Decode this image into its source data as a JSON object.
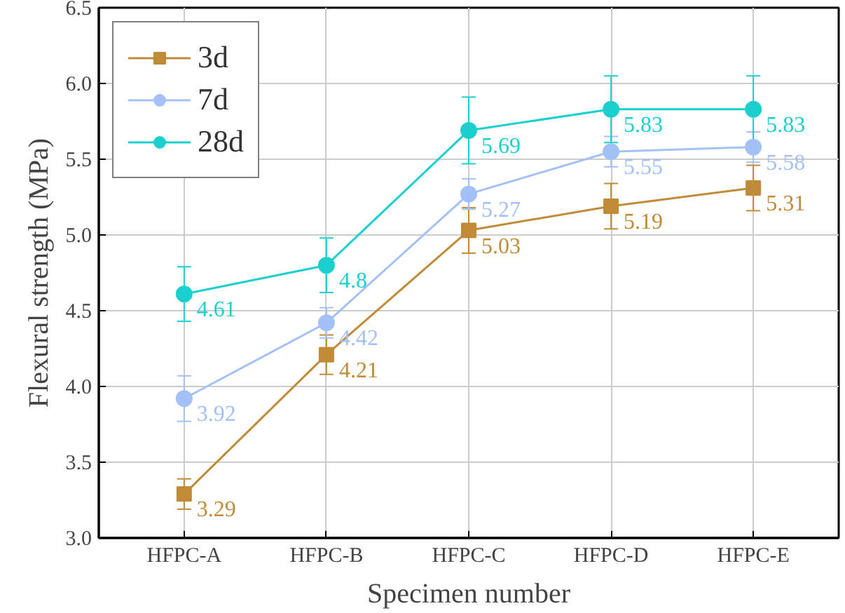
{
  "chart_data": {
    "type": "line",
    "xlabel": "Specimen number",
    "ylabel": "Flexural strength (MPa)",
    "categories": [
      "HFPC-A",
      "HFPC-B",
      "HFPC-C",
      "HFPC-D",
      "HFPC-E"
    ],
    "series": [
      {
        "name": "3d",
        "color": "#c08b38",
        "marker": "square",
        "values": [
          3.29,
          4.21,
          5.03,
          5.19,
          5.31
        ],
        "errors": [
          0.1,
          0.13,
          0.15,
          0.15,
          0.15
        ]
      },
      {
        "name": "7d",
        "color": "#a3c1f7",
        "marker": "circle",
        "values": [
          3.92,
          4.42,
          5.27,
          5.55,
          5.58
        ],
        "errors": [
          0.15,
          0.1,
          0.1,
          0.1,
          0.1
        ]
      },
      {
        "name": "28d",
        "color": "#1ccfcf",
        "marker": "circle",
        "values": [
          4.61,
          4.8,
          5.69,
          5.83,
          5.83
        ],
        "errors": [
          0.18,
          0.18,
          0.22,
          0.22,
          0.22
        ]
      }
    ],
    "ylim": [
      3.0,
      6.5
    ],
    "yticks": [
      {
        "value": 3,
        "label": "3.0"
      },
      3.5,
      {
        "value": 4,
        "label": "4.0"
      },
      4.5,
      {
        "value": 5,
        "label": "5.0"
      },
      5.5,
      {
        "value": 6,
        "label": "6.0"
      },
      6.5
    ],
    "grid": true,
    "legend": "top left",
    "data_labels": true,
    "line_style": "solid"
  }
}
